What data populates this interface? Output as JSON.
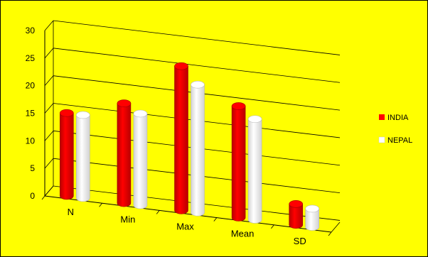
{
  "chart_data": {
    "type": "bar",
    "style": "3d-cylinder",
    "categories": [
      "N",
      "Min",
      "Max",
      "Mean",
      "SD"
    ],
    "series": [
      {
        "name": "INDIA",
        "values": [
          15,
          18,
          26,
          20,
          3.5
        ],
        "color": "#ff0000"
      },
      {
        "name": "NEPAL",
        "values": [
          15,
          16.5,
          23,
          18,
          3
        ],
        "color": "#ffffff"
      }
    ],
    "yticks": [
      0,
      5,
      10,
      15,
      20,
      25,
      30
    ],
    "ylim": [
      0,
      30
    ],
    "grid": true,
    "legend": "right",
    "background": "#ffff00"
  }
}
